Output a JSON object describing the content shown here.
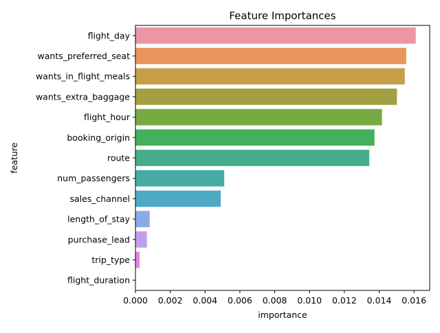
{
  "chart_data": {
    "type": "bar",
    "orientation": "horizontal",
    "title": "Feature Importances",
    "xlabel": "importance",
    "ylabel": "feature",
    "xlim": [
      0,
      0.0169
    ],
    "xticks": [
      0.0,
      0.002,
      0.004,
      0.006,
      0.008,
      0.01,
      0.012,
      0.014,
      0.016
    ],
    "xtick_labels": [
      "0.000",
      "0.002",
      "0.004",
      "0.006",
      "0.008",
      "0.010",
      "0.012",
      "0.014",
      "0.016"
    ],
    "grid": false,
    "legend": "none",
    "categories": [
      "flight_day",
      "wants_preferred_seat",
      "wants_in_flight_meals",
      "wants_extra_baggage",
      "flight_hour",
      "booking_origin",
      "route",
      "num_passengers",
      "sales_channel",
      "length_of_stay",
      "purchase_lead",
      "trip_type",
      "flight_duration"
    ],
    "values": [
      0.0161,
      0.01555,
      0.01547,
      0.01502,
      0.01416,
      0.01373,
      0.01343,
      0.0051,
      0.0049,
      0.00082,
      0.00066,
      0.00024,
      0.0
    ],
    "colors": [
      "#ea96a3",
      "#e8945b",
      "#c59e4a",
      "#a3a042",
      "#77aa41",
      "#43b05b",
      "#45ad89",
      "#46aba0",
      "#4da9c4",
      "#8babe8",
      "#bfa0ec",
      "#e685e8",
      "#e98fc8"
    ]
  }
}
